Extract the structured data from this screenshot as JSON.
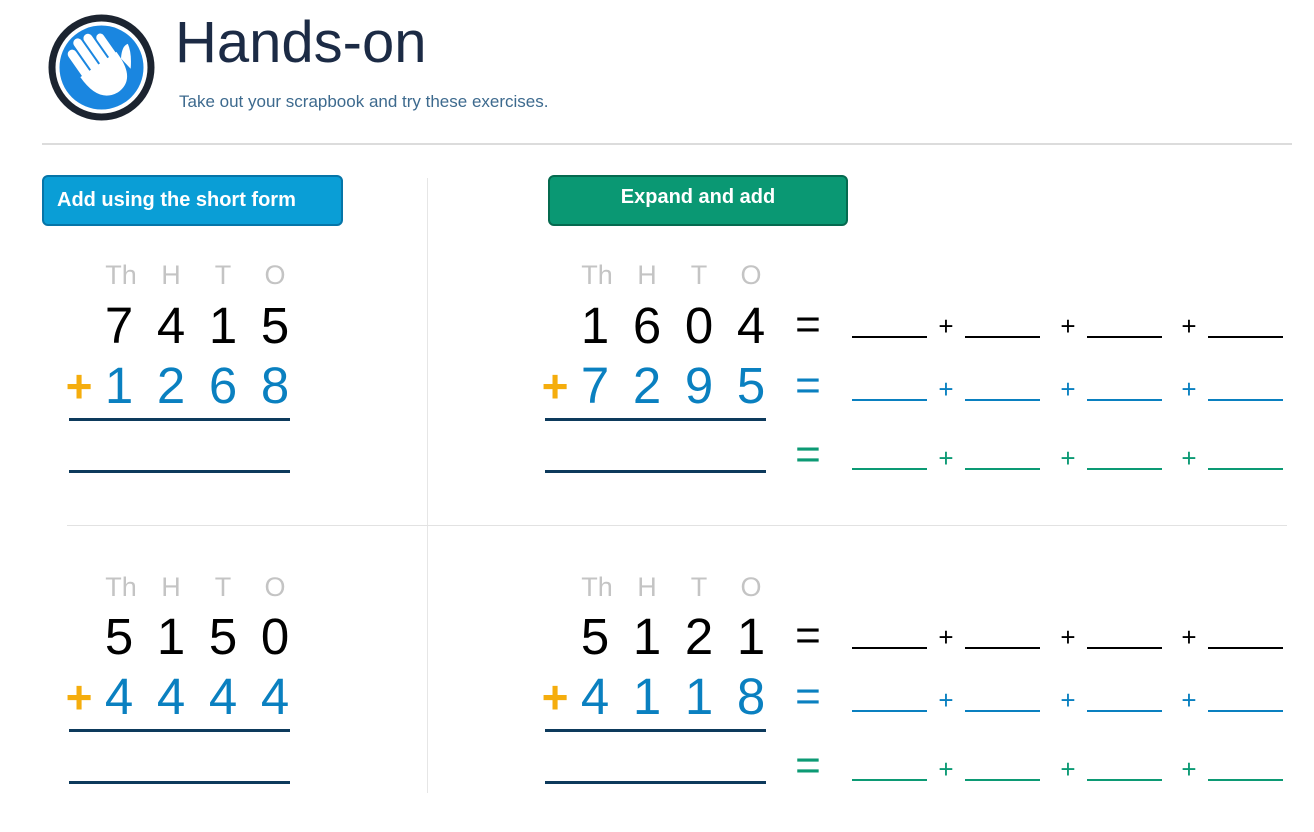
{
  "header": {
    "title": "Hands-on",
    "subtitle": "Take out your scrapbook and try these exercises.",
    "icon": "hand-icon"
  },
  "sections": {
    "short_form_label": "Add using the short form",
    "expand_label": "Expand and add"
  },
  "place_value_headers": [
    "Th",
    "H",
    "T",
    "O"
  ],
  "plus_sign": "+",
  "equals_sign": "=",
  "colors": {
    "accent_short": "#0a9ed6",
    "accent_expand": "#0a9873",
    "plus_yellow": "#f5ad0d",
    "addend_blue": "#0a80c0",
    "result_green": "#0c9a74"
  },
  "problems": {
    "short_1": {
      "top": [
        "7",
        "4",
        "1",
        "5"
      ],
      "bottom": [
        "1",
        "2",
        "6",
        "8"
      ]
    },
    "short_2": {
      "top": [
        "5",
        "1",
        "5",
        "0"
      ],
      "bottom": [
        "4",
        "4",
        "4",
        "4"
      ]
    },
    "expand_1": {
      "top": [
        "1",
        "6",
        "0",
        "4"
      ],
      "bottom": [
        "7",
        "2",
        "9",
        "5"
      ]
    },
    "expand_2": {
      "top": [
        "5",
        "1",
        "2",
        "1"
      ],
      "bottom": [
        "4",
        "1",
        "1",
        "8"
      ]
    }
  }
}
